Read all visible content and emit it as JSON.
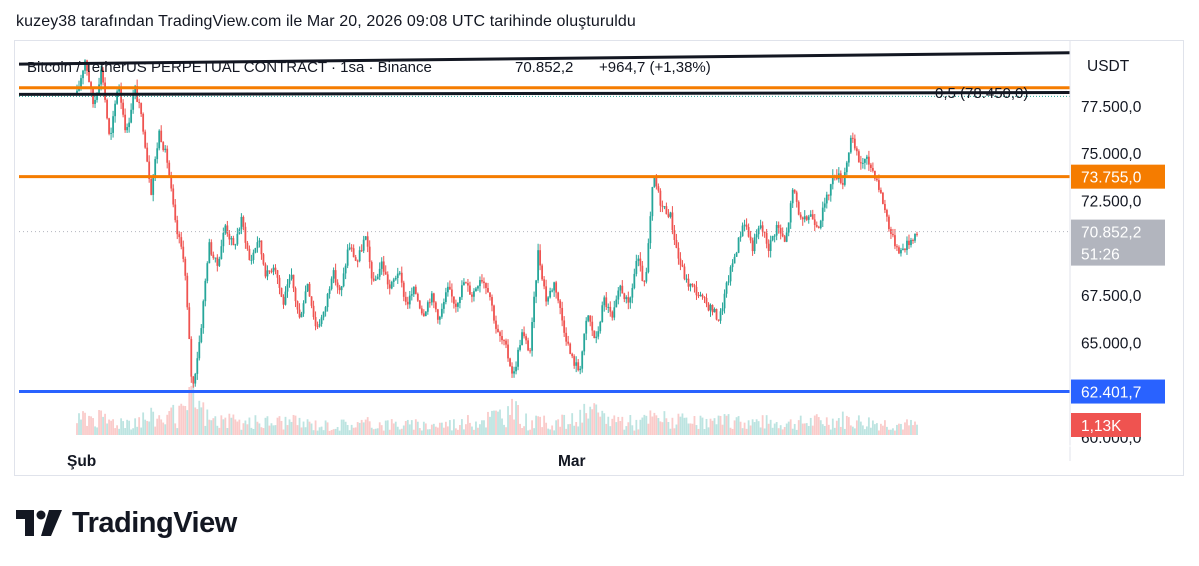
{
  "caption": "kuzey38 tarafından TradingView.com ile Mar 20, 2026 09:08 UTC tarihinde oluşturuldu",
  "brand": {
    "name": "TradingView",
    "logo_icon": "tradingview-logo-icon"
  },
  "colors": {
    "up": "#26a69a",
    "down": "#ef5350",
    "orange": "#f57c00",
    "blue": "#2962ff",
    "black": "#131722",
    "grey_tag": "#b2b5be",
    "red_tag": "#ef5350"
  },
  "chart_data": {
    "type": "candlestick",
    "title": "Bitcoin / TetherUS PERPETUAL CONTRACT · 1sa · Binance",
    "last_price_text": "70.852,2",
    "change_text": "+964,7 (+1,38%)",
    "currency": "USDT",
    "x_labels": [
      "Şub",
      "Mar"
    ],
    "y_ticks": [
      "77.500,0",
      "75.000,0",
      "72.500,0",
      "67.500,0",
      "65.000,0",
      "60.000,0"
    ],
    "y_tick_values": [
      77500,
      75000,
      72500,
      67500,
      65000,
      60000
    ],
    "ylim": [
      60000,
      80500
    ],
    "price_tags": [
      {
        "label": "73.755,0",
        "value": 73755,
        "color": "orange"
      },
      {
        "label": "70.852,2",
        "sub": "51:26",
        "value": 70852.2,
        "color": "grey"
      },
      {
        "label": "62.401,7",
        "value": 62401.7,
        "color": "blue"
      }
    ],
    "volume_tag": "1,13K",
    "horizontal_lines": [
      {
        "value": 73755,
        "color": "orange"
      },
      {
        "value": 62401.7,
        "color": "blue"
      }
    ],
    "fib_label": "0,5 (78.450,0)",
    "fib_value": 78450,
    "trend_lines": [
      {
        "from": [
          0,
          79700
        ],
        "to": [
          1,
          80300
        ],
        "color": "black"
      },
      {
        "from": [
          0,
          78100
        ],
        "to": [
          1,
          78200
        ],
        "color": "black"
      }
    ],
    "price_path": [
      [
        0,
        78100
      ],
      [
        1,
        80000
      ],
      [
        2,
        77500
      ],
      [
        3,
        79500
      ],
      [
        4,
        75500
      ],
      [
        5,
        78800
      ],
      [
        6,
        76000
      ],
      [
        7,
        78500
      ],
      [
        8,
        76500
      ],
      [
        9,
        73000
      ],
      [
        10,
        76200
      ],
      [
        11,
        74500
      ],
      [
        12,
        71000
      ],
      [
        13,
        69500
      ],
      [
        14,
        62400
      ],
      [
        15,
        65500
      ],
      [
        16,
        70200
      ],
      [
        17,
        69000
      ],
      [
        18,
        71200
      ],
      [
        19,
        70000
      ],
      [
        20,
        71500
      ],
      [
        21,
        69200
      ],
      [
        22,
        70500
      ],
      [
        23,
        68500
      ],
      [
        24,
        69200
      ],
      [
        25,
        67000
      ],
      [
        26,
        68500
      ],
      [
        27,
        66200
      ],
      [
        28,
        68200
      ],
      [
        29,
        65800
      ],
      [
        30,
        66500
      ],
      [
        31,
        68800
      ],
      [
        32,
        67500
      ],
      [
        33,
        70200
      ],
      [
        34,
        69200
      ],
      [
        35,
        70600
      ],
      [
        36,
        68000
      ],
      [
        37,
        69200
      ],
      [
        38,
        67800
      ],
      [
        39,
        68800
      ],
      [
        40,
        67000
      ],
      [
        41,
        67800
      ],
      [
        42,
        66500
      ],
      [
        43,
        67500
      ],
      [
        44,
        66200
      ],
      [
        45,
        67800
      ],
      [
        46,
        67000
      ],
      [
        47,
        68200
      ],
      [
        48,
        67500
      ],
      [
        49,
        68500
      ],
      [
        50,
        67800
      ],
      [
        51,
        65500
      ],
      [
        52,
        64800
      ],
      [
        53,
        63200
      ],
      [
        54,
        65500
      ],
      [
        55,
        64500
      ],
      [
        56,
        69800
      ],
      [
        57,
        67200
      ],
      [
        58,
        68200
      ],
      [
        59,
        66000
      ],
      [
        60,
        64200
      ],
      [
        61,
        63500
      ],
      [
        62,
        66500
      ],
      [
        63,
        65000
      ],
      [
        64,
        67300
      ],
      [
        65,
        66200
      ],
      [
        66,
        68000
      ],
      [
        67,
        66800
      ],
      [
        68,
        69500
      ],
      [
        69,
        67800
      ],
      [
        70,
        73800
      ],
      [
        71,
        72200
      ],
      [
        72,
        71800
      ],
      [
        73,
        69500
      ],
      [
        74,
        68200
      ],
      [
        75,
        67800
      ],
      [
        76,
        67200
      ],
      [
        77,
        66800
      ],
      [
        78,
        66200
      ],
      [
        79,
        68200
      ],
      [
        80,
        69800
      ],
      [
        81,
        71500
      ],
      [
        82,
        70000
      ],
      [
        83,
        71200
      ],
      [
        84,
        70000
      ],
      [
        85,
        71200
      ],
      [
        86,
        70200
      ],
      [
        87,
        73200
      ],
      [
        88,
        71200
      ],
      [
        89,
        71800
      ],
      [
        90,
        71200
      ],
      [
        91,
        72500
      ],
      [
        92,
        74000
      ],
      [
        93,
        73500
      ],
      [
        94,
        75800
      ],
      [
        95,
        74500
      ],
      [
        96,
        74600
      ],
      [
        97,
        73800
      ],
      [
        98,
        72200
      ],
      [
        99,
        70500
      ],
      [
        100,
        69800
      ],
      [
        101,
        70300
      ],
      [
        102,
        70852
      ]
    ],
    "volume_profile": [
      [
        0,
        30
      ],
      [
        1,
        55
      ],
      [
        3,
        40
      ],
      [
        5,
        35
      ],
      [
        7,
        40
      ],
      [
        9,
        45
      ],
      [
        13,
        50
      ],
      [
        14,
        100
      ],
      [
        16,
        40
      ],
      [
        20,
        30
      ],
      [
        25,
        35
      ],
      [
        30,
        25
      ],
      [
        36,
        30
      ],
      [
        41,
        25
      ],
      [
        47,
        30
      ],
      [
        53,
        60
      ],
      [
        55,
        30
      ],
      [
        60,
        35
      ],
      [
        62,
        55
      ],
      [
        68,
        30
      ],
      [
        70,
        45
      ],
      [
        75,
        30
      ],
      [
        80,
        35
      ],
      [
        87,
        30
      ],
      [
        93,
        40
      ],
      [
        95,
        35
      ],
      [
        98,
        30
      ],
      [
        102,
        25
      ]
    ]
  }
}
